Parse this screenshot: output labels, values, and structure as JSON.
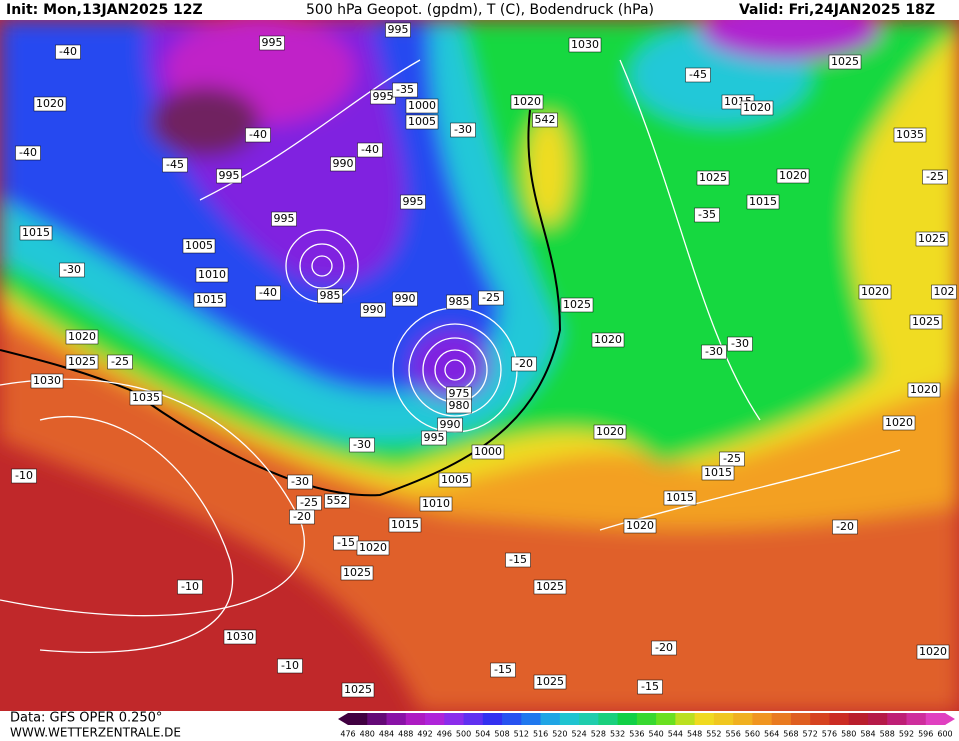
{
  "header": {
    "init": "Init: Mon,13JAN2025 12Z",
    "title": "500 hPa Geopot. (gpdm), T (C), Bodendruck (hPa)",
    "valid": "Valid: Fri,24JAN2025 18Z"
  },
  "footer": {
    "source": "Data: GFS OPER 0.250°",
    "site": "WWW.WETTERZENTRALE.DE"
  },
  "color_scale": {
    "labels": [
      476,
      480,
      484,
      488,
      492,
      496,
      500,
      504,
      508,
      512,
      516,
      520,
      524,
      528,
      532,
      536,
      540,
      544,
      548,
      552,
      556,
      560,
      564,
      568,
      572,
      576,
      580,
      584,
      588,
      592,
      596,
      600
    ]
  },
  "map": {
    "contour_labels": [
      "995",
      "995",
      "1030",
      "1025",
      "-40",
      "-45",
      "1020",
      "995",
      "-35",
      "1000",
      "1005",
      "-30",
      "1020",
      "542",
      "1015",
      "1020",
      "1035",
      "-40",
      "-40",
      "-45",
      "995",
      "990",
      "-40",
      "995",
      "1025",
      "1020",
      "1015",
      "-25",
      "995",
      "-35",
      "1015",
      "1005",
      "1025",
      "-30",
      "1010",
      "1020",
      "102",
      "-40",
      "1015",
      "985",
      "990",
      "985",
      "-25",
      "1025",
      "990",
      "1025",
      "1020",
      "1020",
      "-30",
      "-30",
      "1025",
      "-25",
      "-20",
      "1030",
      "975",
      "980",
      "1020",
      "1035",
      "1020",
      "990",
      "995",
      "1020",
      "-30",
      "1000",
      "-25",
      "-10",
      "1015",
      "1005",
      "-30",
      "-25",
      "552",
      "1015",
      "1010",
      "-20",
      "1015",
      "1020",
      "-20",
      "-15",
      "1020",
      "-15",
      "1025",
      "1025",
      "-10",
      "1030",
      "-20",
      "1020",
      "-10",
      "-15",
      "1025",
      "-15",
      "1025"
    ]
  }
}
